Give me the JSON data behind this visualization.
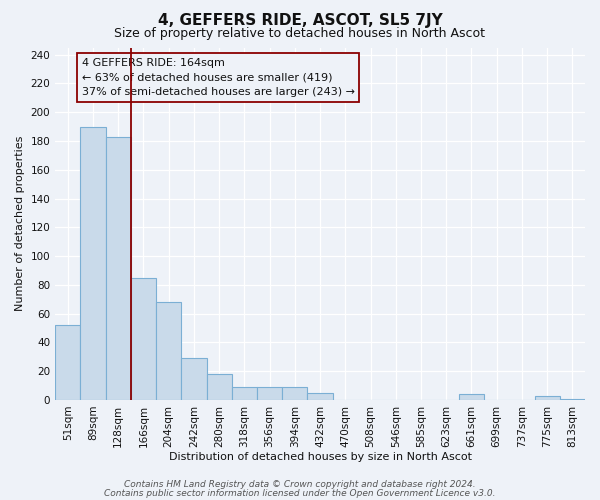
{
  "title": "4, GEFFERS RIDE, ASCOT, SL5 7JY",
  "subtitle": "Size of property relative to detached houses in North Ascot",
  "xlabel": "Distribution of detached houses by size in North Ascot",
  "ylabel": "Number of detached properties",
  "footer_line1": "Contains HM Land Registry data © Crown copyright and database right 2024.",
  "footer_line2": "Contains public sector information licensed under the Open Government Licence v3.0.",
  "bar_labels": [
    "51sqm",
    "89sqm",
    "128sqm",
    "166sqm",
    "204sqm",
    "242sqm",
    "280sqm",
    "318sqm",
    "356sqm",
    "394sqm",
    "432sqm",
    "470sqm",
    "508sqm",
    "546sqm",
    "585sqm",
    "623sqm",
    "661sqm",
    "699sqm",
    "737sqm",
    "775sqm",
    "813sqm"
  ],
  "bar_values": [
    52,
    190,
    183,
    85,
    68,
    29,
    18,
    9,
    9,
    9,
    5,
    0,
    0,
    0,
    0,
    0,
    4,
    0,
    0,
    3,
    1
  ],
  "bar_color": "#c9daea",
  "bar_edge_color": "#7bafd4",
  "bar_edge_width": 0.8,
  "annotation_title": "4 GEFFERS RIDE: 164sqm",
  "annotation_line1": "← 63% of detached houses are smaller (419)",
  "annotation_line2": "37% of semi-detached houses are larger (243) →",
  "red_line_index": 2.5,
  "ylim": [
    0,
    245
  ],
  "yticks": [
    0,
    20,
    40,
    60,
    80,
    100,
    120,
    140,
    160,
    180,
    200,
    220,
    240
  ],
  "background_color": "#eef2f8",
  "grid_color": "#ffffff",
  "title_fontsize": 11,
  "subtitle_fontsize": 9,
  "axis_label_fontsize": 8,
  "tick_fontsize": 7.5,
  "footer_fontsize": 6.5,
  "annotation_fontsize": 8
}
